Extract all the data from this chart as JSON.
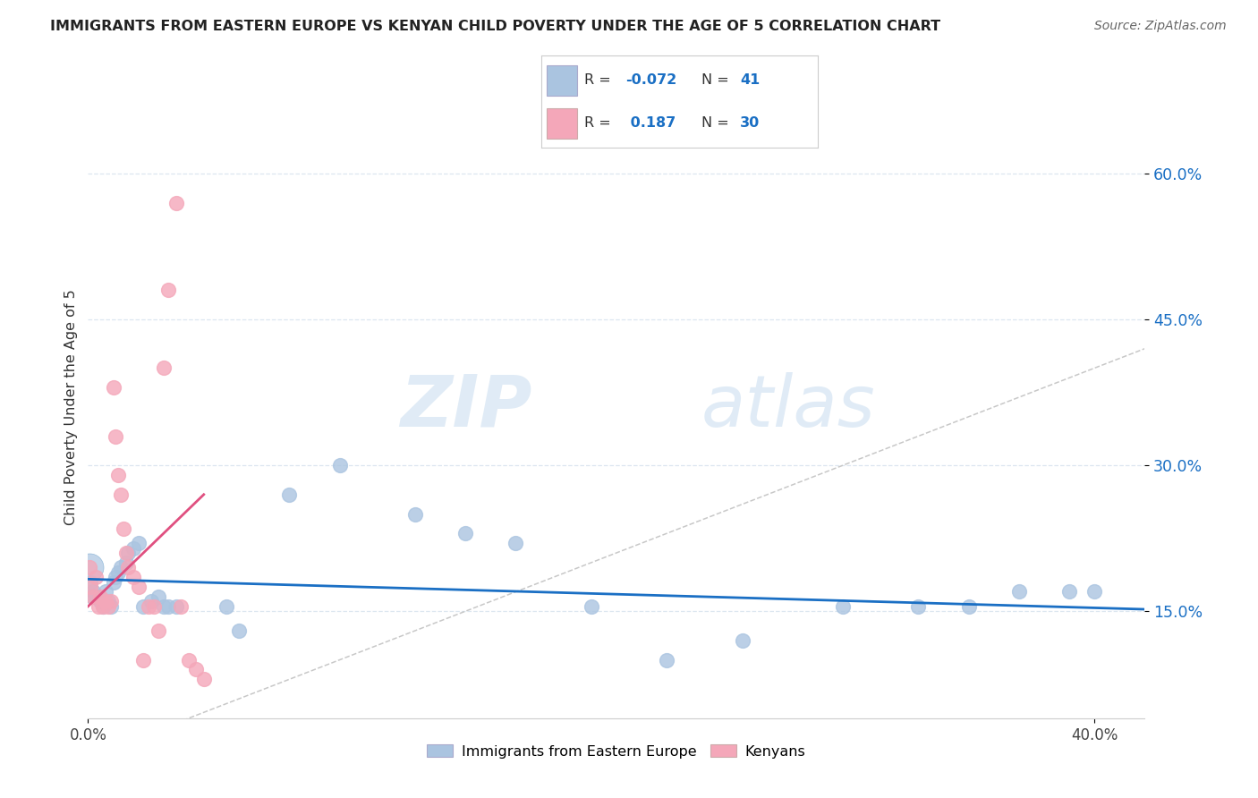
{
  "title": "IMMIGRANTS FROM EASTERN EUROPE VS KENYAN CHILD POVERTY UNDER THE AGE OF 5 CORRELATION CHART",
  "source": "Source: ZipAtlas.com",
  "ylabel": "Child Poverty Under the Age of 5",
  "yticks": [
    0.15,
    0.3,
    0.45,
    0.6
  ],
  "ytick_labels": [
    "15.0%",
    "30.0%",
    "45.0%",
    "60.0%"
  ],
  "xticks": [
    0.0,
    0.4
  ],
  "xtick_labels": [
    "0.0%",
    "40.0%"
  ],
  "xlim": [
    0.0,
    0.42
  ],
  "ylim": [
    0.04,
    0.68
  ],
  "legend_r_blue": "-0.072",
  "legend_n_blue": "41",
  "legend_r_pink": "0.187",
  "legend_n_pink": "30",
  "blue_color": "#aac4e0",
  "pink_color": "#f4a7b9",
  "trendline_blue_color": "#1a6fc4",
  "trendline_pink_color": "#e05080",
  "diagonal_color": "#c8c8c8",
  "legend_blue_label": "Immigrants from Eastern Europe",
  "legend_pink_label": "Kenyans",
  "blue_scatter_x": [
    0.0005,
    0.001,
    0.0015,
    0.002,
    0.003,
    0.004,
    0.005,
    0.006,
    0.007,
    0.008,
    0.009,
    0.01,
    0.011,
    0.012,
    0.013,
    0.015,
    0.016,
    0.018,
    0.02,
    0.022,
    0.025,
    0.028,
    0.03,
    0.032,
    0.035,
    0.055,
    0.06,
    0.08,
    0.1,
    0.13,
    0.15,
    0.17,
    0.2,
    0.23,
    0.26,
    0.3,
    0.33,
    0.35,
    0.37,
    0.39,
    0.4
  ],
  "blue_scatter_y": [
    0.2,
    0.18,
    0.165,
    0.17,
    0.165,
    0.165,
    0.16,
    0.155,
    0.17,
    0.16,
    0.155,
    0.18,
    0.185,
    0.19,
    0.195,
    0.2,
    0.21,
    0.215,
    0.22,
    0.155,
    0.16,
    0.165,
    0.155,
    0.155,
    0.155,
    0.155,
    0.13,
    0.27,
    0.3,
    0.25,
    0.23,
    0.22,
    0.155,
    0.1,
    0.12,
    0.155,
    0.155,
    0.155,
    0.17,
    0.17,
    0.17
  ],
  "pink_scatter_x": [
    0.0005,
    0.001,
    0.002,
    0.003,
    0.004,
    0.005,
    0.006,
    0.007,
    0.008,
    0.009,
    0.01,
    0.011,
    0.012,
    0.013,
    0.014,
    0.015,
    0.016,
    0.018,
    0.02,
    0.022,
    0.024,
    0.026,
    0.028,
    0.03,
    0.032,
    0.035,
    0.037,
    0.04,
    0.043,
    0.046
  ],
  "pink_scatter_y": [
    0.195,
    0.175,
    0.165,
    0.185,
    0.155,
    0.165,
    0.155,
    0.16,
    0.155,
    0.16,
    0.38,
    0.33,
    0.29,
    0.27,
    0.235,
    0.21,
    0.195,
    0.185,
    0.175,
    0.1,
    0.155,
    0.155,
    0.13,
    0.4,
    0.48,
    0.57,
    0.155,
    0.1,
    0.09,
    0.08
  ],
  "watermark_zip": "ZIP",
  "watermark_atlas": "atlas",
  "background_color": "#ffffff",
  "grid_color": "#dce6f0"
}
